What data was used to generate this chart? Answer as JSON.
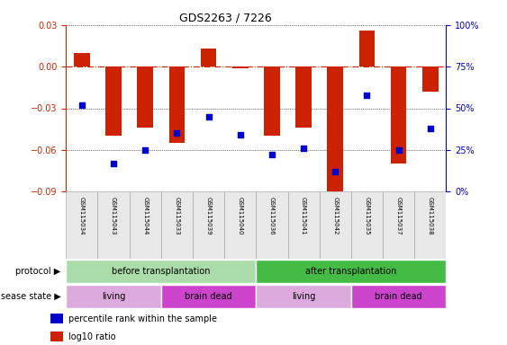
{
  "title": "GDS2263 / 7226",
  "samples": [
    "GSM115034",
    "GSM115043",
    "GSM115044",
    "GSM115033",
    "GSM115039",
    "GSM115040",
    "GSM115036",
    "GSM115041",
    "GSM115042",
    "GSM115035",
    "GSM115037",
    "GSM115038"
  ],
  "log10_ratio": [
    0.01,
    -0.05,
    -0.044,
    -0.055,
    0.013,
    -0.001,
    -0.05,
    -0.044,
    -0.093,
    0.026,
    -0.07,
    -0.018
  ],
  "percentile_rank": [
    52,
    17,
    25,
    35,
    45,
    34,
    22,
    26,
    12,
    58,
    25,
    38
  ],
  "ylim_left": [
    -0.09,
    0.03
  ],
  "ylim_right": [
    0,
    100
  ],
  "yticks_left": [
    -0.09,
    -0.06,
    -0.03,
    0,
    0.03
  ],
  "yticks_right": [
    0,
    25,
    50,
    75,
    100
  ],
  "bar_color": "#cc2200",
  "dot_color": "#0000cc",
  "hline_color": "#cc2200",
  "grid_color": "#000000",
  "protocol_before_color": "#aaddaa",
  "protocol_after_color": "#44bb44",
  "disease_living_color": "#ddaadd",
  "disease_braindead_color": "#cc44cc",
  "protocol_before_label": "before transplantation",
  "protocol_after_label": "after transplantation",
  "disease_living_label": "living",
  "disease_braindead_label": "brain dead",
  "protocol_label": "protocol",
  "disease_label": "disease state",
  "legend_bar_label": "log10 ratio",
  "legend_dot_label": "percentile rank within the sample",
  "before_count": 6,
  "after_count": 6,
  "living_before_count": 3,
  "braindead_before_count": 3,
  "living_after_count": 3,
  "braindead_after_count": 3
}
